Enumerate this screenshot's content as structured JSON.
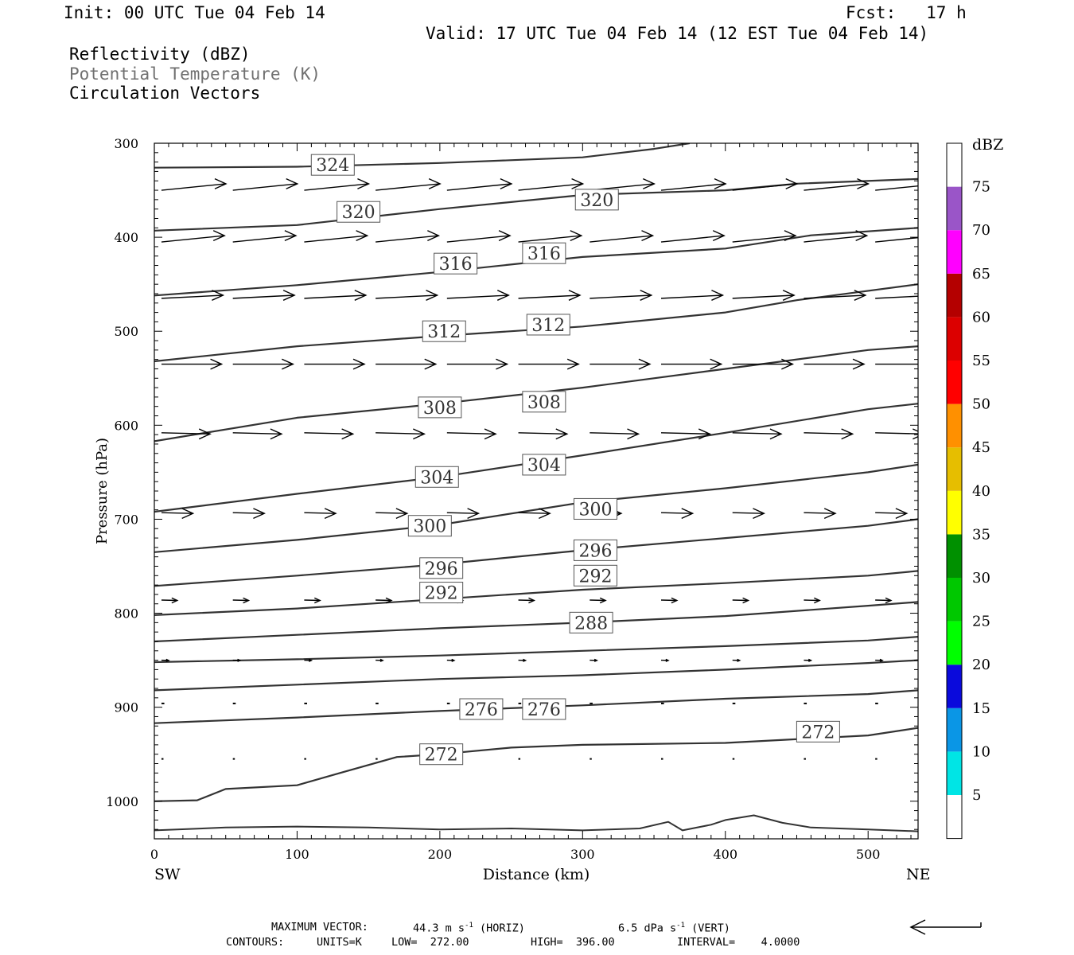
{
  "header": {
    "init": "Init: 00 UTC Tue 04 Feb 14",
    "fcst": "Fcst:   17 h",
    "valid": "Valid: 17 UTC Tue 04 Feb 14 (12 EST Tue 04 Feb 14)",
    "field1": "Reflectivity (dBZ)",
    "field2": "Potential Temperature (K)",
    "field3": "Circulation Vectors"
  },
  "colors": {
    "field2": "#707070",
    "contour": "#333333"
  },
  "footer": {
    "max_vector_label": "MAXIMUM VECTOR:",
    "horiz": "44.3 m s",
    "horiz_unit": "(HORIZ)",
    "vert": "6.5 dPa s",
    "vert_unit": "(VERT)",
    "exp": "-1",
    "contours_label": "CONTOURS:",
    "units": "UNITS=K",
    "low": "LOW=  272.00",
    "high": "HIGH=  396.00",
    "interval": "INTERVAL=    4.0000"
  },
  "chart_data": {
    "type": "line",
    "ylabel": "Pressure (hPa)",
    "xlabel": "Distance (km)",
    "x_left_label": "SW",
    "x_right_label": "NE",
    "xlim": [
      0,
      535
    ],
    "ylim": [
      300,
      1040
    ],
    "x_ticks": [
      0,
      100,
      200,
      300,
      400,
      500
    ],
    "y_ticks": [
      300,
      400,
      500,
      600,
      700,
      800,
      900,
      1000
    ],
    "colorbar": {
      "unit": "dBZ",
      "levels": [
        "5",
        "10",
        "15",
        "20",
        "25",
        "30",
        "35",
        "40",
        "45",
        "50",
        "55",
        "60",
        "65",
        "70",
        "75"
      ],
      "colors": [
        "#ffffff",
        "#00e5e5",
        "#0a96e6",
        "#0a0adc",
        "#00ff00",
        "#00c800",
        "#009000",
        "#ffff00",
        "#e6be00",
        "#ff9000",
        "#ff0000",
        "#dc0000",
        "#b40000",
        "#ff00ff",
        "#9a55c8",
        "#ffffff"
      ]
    },
    "isentropes": [
      {
        "theta": 324,
        "points": [
          [
            0,
            326
          ],
          [
            100,
            325
          ],
          [
            200,
            321
          ],
          [
            300,
            315
          ],
          [
            350,
            306
          ],
          [
            375,
            300
          ]
        ],
        "labels": [
          [
            125,
            323
          ]
        ]
      },
      {
        "theta": 320,
        "points": [
          [
            0,
            393
          ],
          [
            100,
            387
          ],
          [
            200,
            370
          ],
          [
            300,
            355
          ],
          [
            400,
            350
          ],
          [
            450,
            343
          ],
          [
            535,
            338
          ]
        ],
        "labels": [
          [
            143,
            373
          ],
          [
            310,
            360
          ]
        ]
      },
      {
        "theta": 316,
        "points": [
          [
            0,
            462
          ],
          [
            100,
            451
          ],
          [
            200,
            437
          ],
          [
            300,
            421
          ],
          [
            400,
            412
          ],
          [
            460,
            398
          ],
          [
            535,
            390
          ]
        ],
        "labels": [
          [
            211,
            428
          ],
          [
            273,
            417
          ]
        ]
      },
      {
        "theta": 312,
        "points": [
          [
            0,
            532
          ],
          [
            100,
            516
          ],
          [
            200,
            505
          ],
          [
            300,
            495
          ],
          [
            400,
            480
          ],
          [
            450,
            467
          ],
          [
            535,
            450
          ]
        ],
        "labels": [
          [
            203,
            500
          ],
          [
            276,
            493
          ]
        ]
      },
      {
        "theta": 308,
        "points": [
          [
            0,
            617
          ],
          [
            100,
            592
          ],
          [
            200,
            577
          ],
          [
            300,
            560
          ],
          [
            400,
            540
          ],
          [
            500,
            520
          ],
          [
            535,
            516
          ]
        ],
        "labels": [
          [
            200,
            581
          ],
          [
            273,
            575
          ]
        ]
      },
      {
        "theta": 304,
        "points": [
          [
            0,
            692
          ],
          [
            100,
            673
          ],
          [
            200,
            655
          ],
          [
            300,
            632
          ],
          [
            400,
            608
          ],
          [
            500,
            583
          ],
          [
            535,
            577
          ]
        ],
        "labels": [
          [
            198,
            655
          ],
          [
            273,
            642
          ]
        ]
      },
      {
        "theta": 300,
        "points": [
          [
            0,
            735
          ],
          [
            100,
            722
          ],
          [
            200,
            706
          ],
          [
            300,
            682
          ],
          [
            400,
            667
          ],
          [
            500,
            650
          ],
          [
            535,
            642
          ]
        ],
        "labels": [
          [
            193,
            707
          ],
          [
            309,
            689
          ]
        ]
      },
      {
        "theta": 296,
        "points": [
          [
            0,
            771
          ],
          [
            100,
            760
          ],
          [
            200,
            748
          ],
          [
            300,
            733
          ],
          [
            400,
            720
          ],
          [
            500,
            707
          ],
          [
            535,
            700
          ]
        ],
        "labels": [
          [
            201,
            752
          ],
          [
            309,
            733
          ]
        ]
      },
      {
        "theta": 292,
        "points": [
          [
            0,
            802
          ],
          [
            100,
            795
          ],
          [
            200,
            785
          ],
          [
            300,
            775
          ],
          [
            400,
            768
          ],
          [
            500,
            760
          ],
          [
            535,
            755
          ]
        ],
        "labels": [
          [
            201,
            778
          ],
          [
            309,
            760
          ]
        ]
      },
      {
        "theta": 288,
        "points": [
          [
            0,
            830
          ],
          [
            100,
            823
          ],
          [
            200,
            816
          ],
          [
            300,
            810
          ],
          [
            400,
            803
          ],
          [
            500,
            792
          ],
          [
            535,
            788
          ]
        ],
        "labels": [
          [
            306,
            810
          ]
        ]
      },
      {
        "theta": 284,
        "points": [
          [
            0,
            852
          ],
          [
            100,
            849
          ],
          [
            200,
            845
          ],
          [
            300,
            840
          ],
          [
            400,
            835
          ],
          [
            500,
            829
          ],
          [
            535,
            825
          ]
        ],
        "labels": []
      },
      {
        "theta": 280,
        "points": [
          [
            0,
            882
          ],
          [
            100,
            876
          ],
          [
            200,
            870
          ],
          [
            300,
            866
          ],
          [
            400,
            860
          ],
          [
            500,
            853
          ],
          [
            535,
            850
          ]
        ],
        "labels": []
      },
      {
        "theta": 276,
        "points": [
          [
            0,
            917
          ],
          [
            100,
            911
          ],
          [
            200,
            904
          ],
          [
            300,
            898
          ],
          [
            400,
            891
          ],
          [
            500,
            886
          ],
          [
            535,
            882
          ]
        ],
        "labels": [
          [
            229,
            902
          ],
          [
            273,
            902
          ]
        ]
      },
      {
        "theta": 272,
        "points": [
          [
            0,
            1000
          ],
          [
            30,
            999
          ],
          [
            50,
            987
          ],
          [
            100,
            983
          ],
          [
            130,
            970
          ],
          [
            170,
            953
          ],
          [
            200,
            950
          ],
          [
            250,
            943
          ],
          [
            300,
            940
          ],
          [
            400,
            938
          ],
          [
            500,
            930
          ],
          [
            535,
            922
          ]
        ],
        "labels": [
          [
            201,
            950
          ],
          [
            465,
            926
          ]
        ]
      }
    ],
    "vector_rows": [
      {
        "p": 350,
        "length": 45,
        "vy": -0.4
      },
      {
        "p": 405,
        "length": 44,
        "vy": -0.4
      },
      {
        "p": 465,
        "length": 43,
        "vy": -0.2
      },
      {
        "p": 535,
        "length": 42,
        "vy": 0.0
      },
      {
        "p": 608,
        "length": 34,
        "vy": 0.1
      },
      {
        "p": 693,
        "length": 22,
        "vy": 0.1
      },
      {
        "p": 786,
        "length": 11,
        "vy": 0.1
      },
      {
        "p": 850,
        "length": 5,
        "vy": 0.1
      },
      {
        "p": 896,
        "length": 2,
        "vy": 0.1
      },
      {
        "p": 955,
        "length": 1,
        "vy": 0.1
      }
    ],
    "vector_x": [
      5,
      55,
      105,
      155,
      205,
      255,
      305,
      355,
      405,
      455,
      505
    ],
    "terrain": [
      [
        0,
        1031
      ],
      [
        50,
        1028
      ],
      [
        100,
        1027
      ],
      [
        150,
        1028
      ],
      [
        200,
        1030
      ],
      [
        250,
        1029
      ],
      [
        300,
        1031
      ],
      [
        340,
        1029
      ],
      [
        360,
        1022
      ],
      [
        370,
        1031
      ],
      [
        390,
        1025
      ],
      [
        400,
        1020
      ],
      [
        420,
        1015
      ],
      [
        440,
        1023
      ],
      [
        460,
        1028
      ],
      [
        500,
        1030
      ],
      [
        535,
        1032
      ]
    ]
  }
}
